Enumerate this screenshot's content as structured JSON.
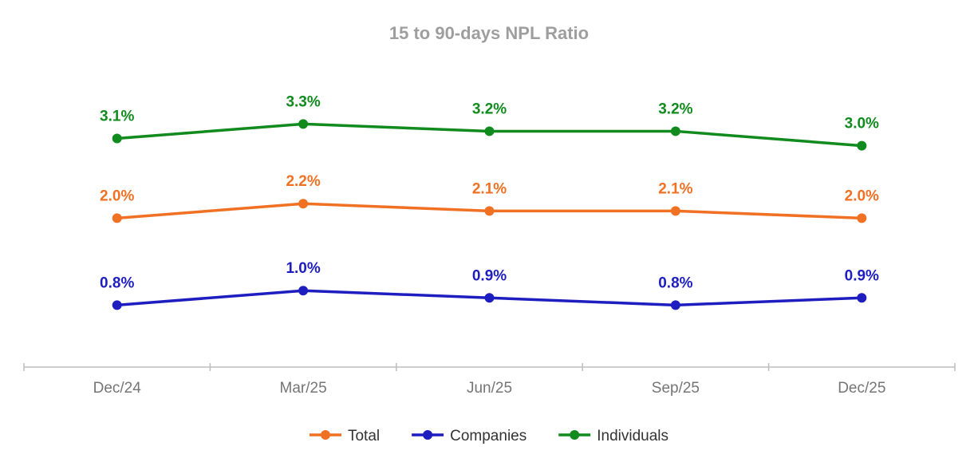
{
  "chart_data": {
    "type": "line",
    "title": "15 to 90-days NPL Ratio",
    "xlabel": "",
    "ylabel": "",
    "categories": [
      "Dec/24",
      "Mar/25",
      "Jun/25",
      "Sep/25",
      "Dec/25"
    ],
    "ylim": [
      0,
      4
    ],
    "grid": false,
    "legend_position": "bottom",
    "value_suffix": "%",
    "series": [
      {
        "name": "Total",
        "color": "#f07024",
        "values": [
          2.0,
          2.2,
          2.1,
          2.1,
          2.0
        ]
      },
      {
        "name": "Companies",
        "color": "#1e1ec0",
        "values": [
          0.8,
          1.0,
          0.9,
          0.8,
          0.9
        ]
      },
      {
        "name": "Individuals",
        "color": "#118a1e",
        "values": [
          3.1,
          3.3,
          3.2,
          3.2,
          3.0
        ]
      }
    ]
  }
}
